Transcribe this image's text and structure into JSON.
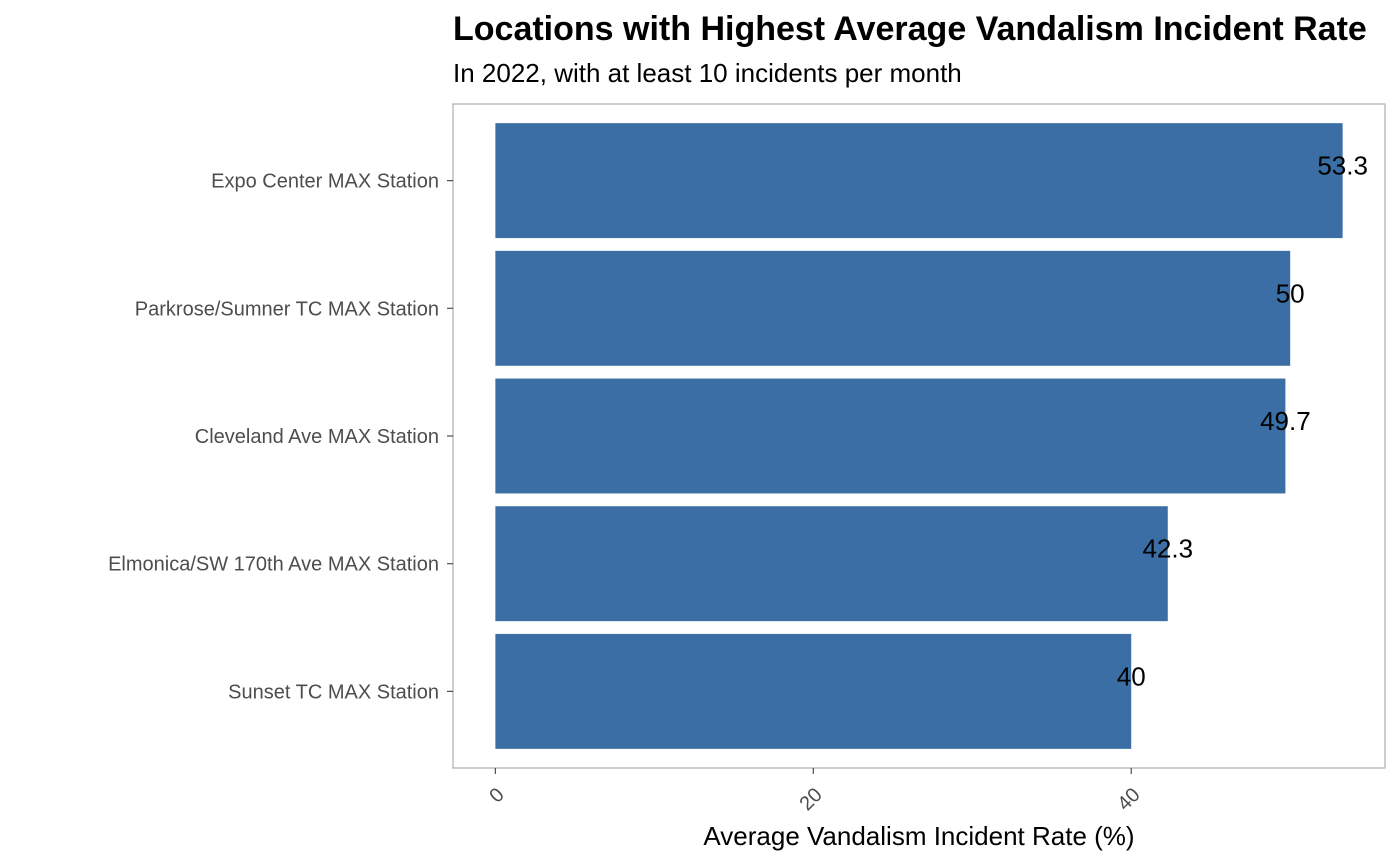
{
  "chart_data": {
    "type": "bar",
    "orientation": "horizontal",
    "title": "Locations with Highest Average Vandalism Incident Rate",
    "subtitle": "In 2022, with at least 10 incidents per month",
    "xlabel": "Average Vandalism Incident Rate (%)",
    "ylabel": "",
    "categories": [
      "Expo Center MAX Station",
      "Parkrose/Sumner TC MAX Station",
      "Cleveland Ave MAX Station",
      "Elmonica/SW 170th Ave MAX Station",
      "Sunset TC MAX Station"
    ],
    "values": [
      53.3,
      50,
      49.7,
      42.3,
      40
    ],
    "data_labels": [
      "53.3",
      "50",
      "49.7",
      "42.3",
      "40"
    ],
    "xticks": [
      0,
      20,
      40
    ],
    "xlim": [
      -2.665,
      55.965
    ],
    "grid": false,
    "legend": "none",
    "bar_color": "#3A6EA5",
    "panel_border_color": "#b3b3b3"
  }
}
